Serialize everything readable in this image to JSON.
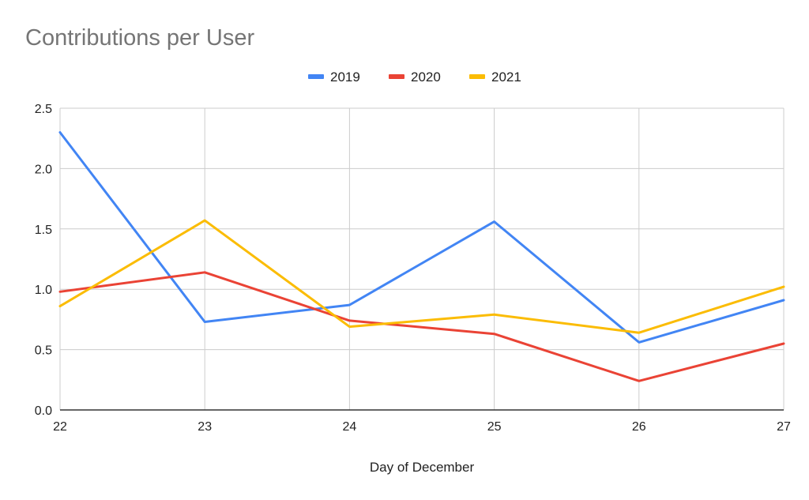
{
  "chart_data": {
    "type": "line",
    "title": "Contributions per User",
    "xlabel": "Day of December",
    "ylabel": "",
    "x": [
      22,
      23,
      24,
      25,
      26,
      27
    ],
    "x_tick_labels": [
      "22",
      "23",
      "24",
      "25",
      "26",
      "27"
    ],
    "ylim": [
      0,
      2.5
    ],
    "y_ticks": [
      0,
      0.5,
      1,
      1.5,
      2,
      2.5
    ],
    "y_tick_labels": [
      "0.0",
      "0.5",
      "1.0",
      "1.5",
      "2.0",
      "2.5"
    ],
    "grid": true,
    "legend_position": "top",
    "series": [
      {
        "name": "2019",
        "color": "#4285f4",
        "values": [
          2.3,
          0.73,
          0.87,
          1.56,
          0.56,
          0.91
        ]
      },
      {
        "name": "2020",
        "color": "#ea4335",
        "values": [
          0.98,
          1.14,
          0.74,
          0.63,
          0.24,
          0.55
        ]
      },
      {
        "name": "2021",
        "color": "#fbbc04",
        "values": [
          0.86,
          1.57,
          0.69,
          0.79,
          0.64,
          1.02
        ]
      }
    ]
  }
}
